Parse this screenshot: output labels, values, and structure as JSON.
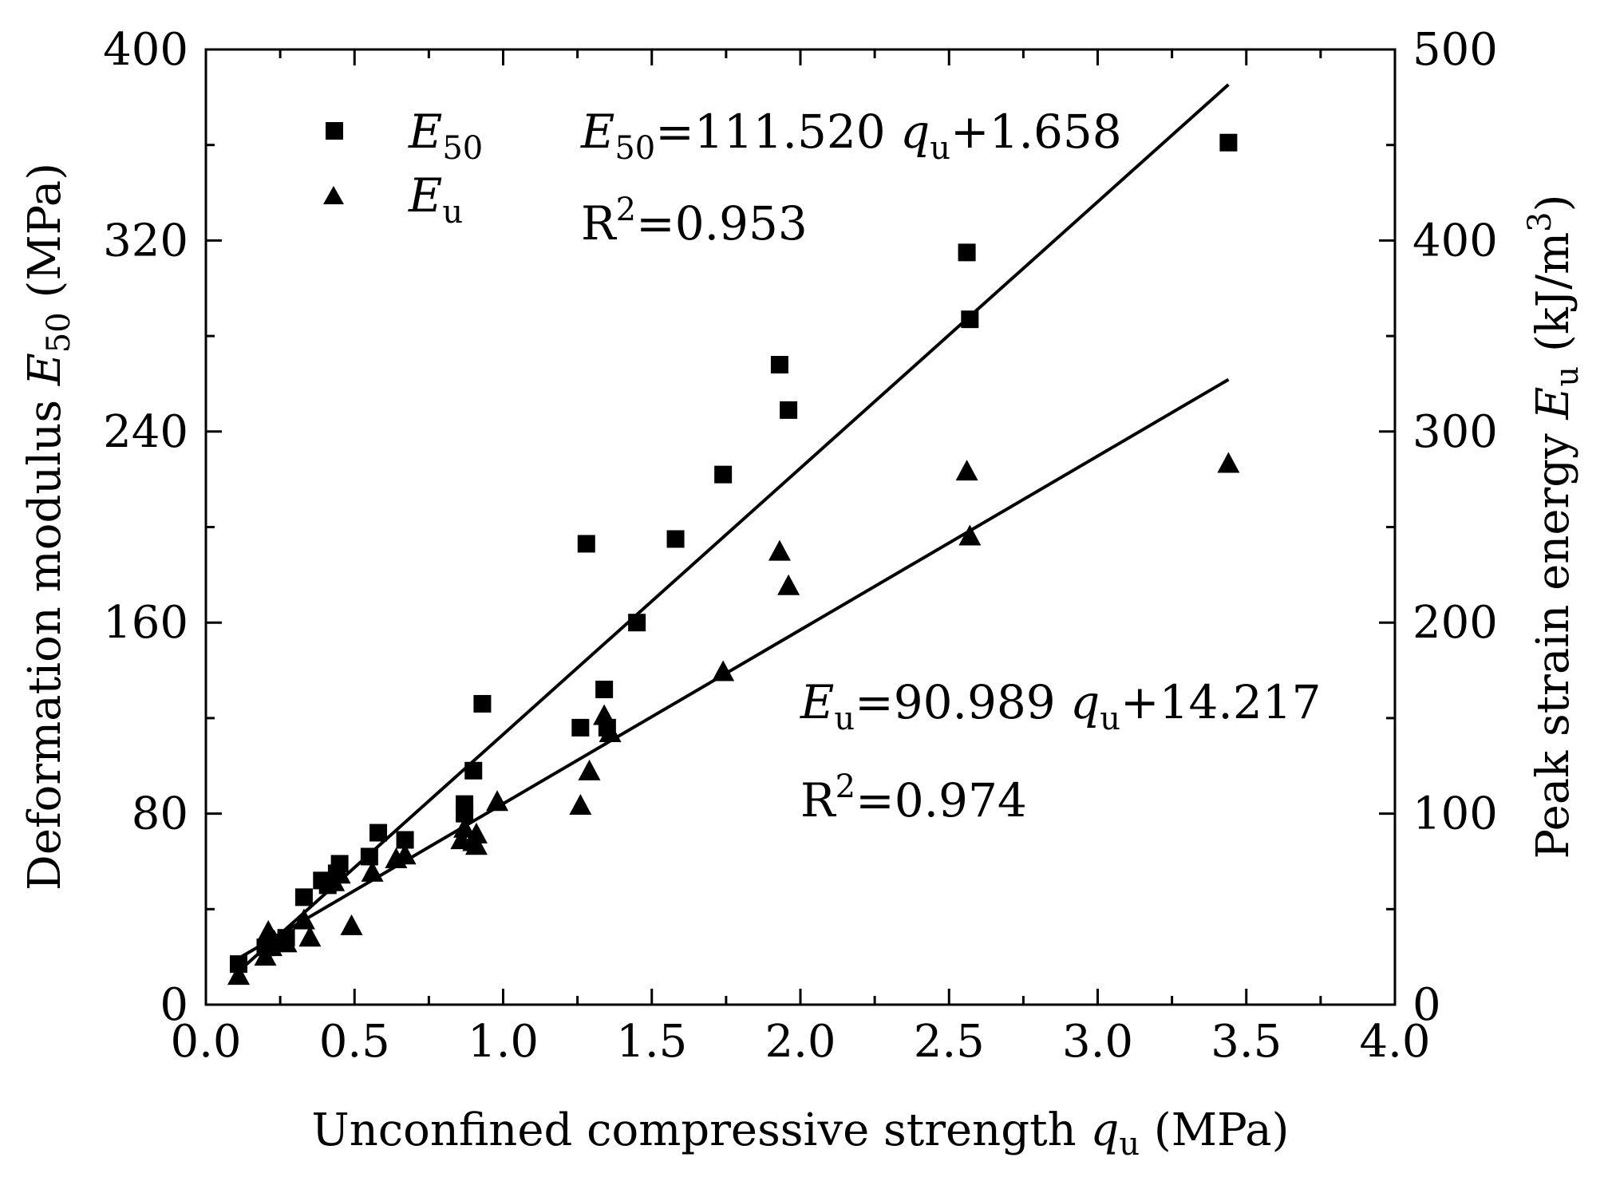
{
  "chart_data": {
    "type": "scatter",
    "xlabel": {
      "text": "Unconfined compressive strength ",
      "symbol": "q",
      "sub": "u",
      "unit": " (MPa)"
    },
    "ylabel_left": {
      "text": "Deformation modulus ",
      "symbol": "E",
      "sub": "50",
      "unit": " (MPa)"
    },
    "ylabel_right": {
      "text": "Peak strain energy ",
      "symbol": "E",
      "sub": "u",
      "unit_pre": " (kJ/m",
      "unit_sup": "3",
      "unit_post": ")"
    },
    "xlim": [
      0.0,
      4.0
    ],
    "ylim_left": [
      0,
      400
    ],
    "ylim_right": [
      0,
      500
    ],
    "x_ticks": [
      "0.0",
      "0.5",
      "1.0",
      "1.5",
      "2.0",
      "2.5",
      "3.0",
      "3.5",
      "4.0"
    ],
    "y_left_ticks": [
      "0",
      "80",
      "160",
      "240",
      "320",
      "400"
    ],
    "y_right_ticks": [
      "0",
      "100",
      "200",
      "300",
      "400",
      "500"
    ],
    "legend": [
      {
        "symbol": "E",
        "sub": "50",
        "marker": "square"
      },
      {
        "symbol": "E",
        "sub": "u",
        "marker": "triangle"
      }
    ],
    "series": [
      {
        "name": "E50",
        "axis": "left",
        "marker": "square",
        "points": [
          [
            0.11,
            17
          ],
          [
            0.2,
            24
          ],
          [
            0.22,
            26
          ],
          [
            0.27,
            28
          ],
          [
            0.33,
            45
          ],
          [
            0.39,
            52
          ],
          [
            0.41,
            50
          ],
          [
            0.44,
            55
          ],
          [
            0.45,
            59
          ],
          [
            0.55,
            62
          ],
          [
            0.58,
            72
          ],
          [
            0.67,
            69
          ],
          [
            0.87,
            80
          ],
          [
            0.87,
            84
          ],
          [
            0.9,
            98
          ],
          [
            0.93,
            126
          ],
          [
            1.26,
            116
          ],
          [
            1.28,
            193
          ],
          [
            1.34,
            132
          ],
          [
            1.35,
            116
          ],
          [
            1.45,
            160
          ],
          [
            1.58,
            195
          ],
          [
            1.74,
            222
          ],
          [
            1.93,
            268
          ],
          [
            1.96,
            249
          ],
          [
            2.56,
            315
          ],
          [
            2.57,
            287
          ],
          [
            3.44,
            361
          ]
        ],
        "fit": {
          "slope": 111.52,
          "intercept": 1.658,
          "x_range": [
            0.11,
            3.44
          ]
        },
        "equation": {
          "lhs_sym": "E",
          "lhs_sub": "50",
          "rhs_pre": "=111.520 ",
          "rhs_sym": "q",
          "rhs_sub": "u",
          "rhs_post": "+1.658"
        },
        "r2": {
          "r": "R",
          "sup": "2",
          "val": "=0.953"
        }
      },
      {
        "name": "Eu",
        "axis": "right",
        "marker": "triangle",
        "points": [
          [
            0.11,
            15
          ],
          [
            0.2,
            25
          ],
          [
            0.21,
            38
          ],
          [
            0.22,
            30
          ],
          [
            0.23,
            33
          ],
          [
            0.27,
            32
          ],
          [
            0.33,
            44
          ],
          [
            0.35,
            35
          ],
          [
            0.43,
            64
          ],
          [
            0.45,
            68
          ],
          [
            0.49,
            41
          ],
          [
            0.56,
            69
          ],
          [
            0.64,
            76
          ],
          [
            0.67,
            78
          ],
          [
            0.86,
            86
          ],
          [
            0.87,
            92
          ],
          [
            0.9,
            85
          ],
          [
            0.91,
            83
          ],
          [
            0.91,
            89
          ],
          [
            0.98,
            106
          ],
          [
            1.26,
            104
          ],
          [
            1.29,
            122
          ],
          [
            1.34,
            151
          ],
          [
            1.36,
            142
          ],
          [
            1.74,
            174
          ],
          [
            1.93,
            237
          ],
          [
            1.96,
            219
          ],
          [
            2.56,
            279
          ],
          [
            2.57,
            245
          ],
          [
            3.44,
            283
          ]
        ],
        "fit": {
          "slope": 90.989,
          "intercept": 14.217,
          "x_range": [
            0.11,
            3.44
          ]
        },
        "equation": {
          "lhs_sym": "E",
          "lhs_sub": "u",
          "rhs_pre": "=90.989 ",
          "rhs_sym": "q",
          "rhs_sub": "u",
          "rhs_post": "+14.217"
        },
        "r2": {
          "r": "R",
          "sup": "2",
          "val": "=0.974"
        }
      }
    ]
  }
}
